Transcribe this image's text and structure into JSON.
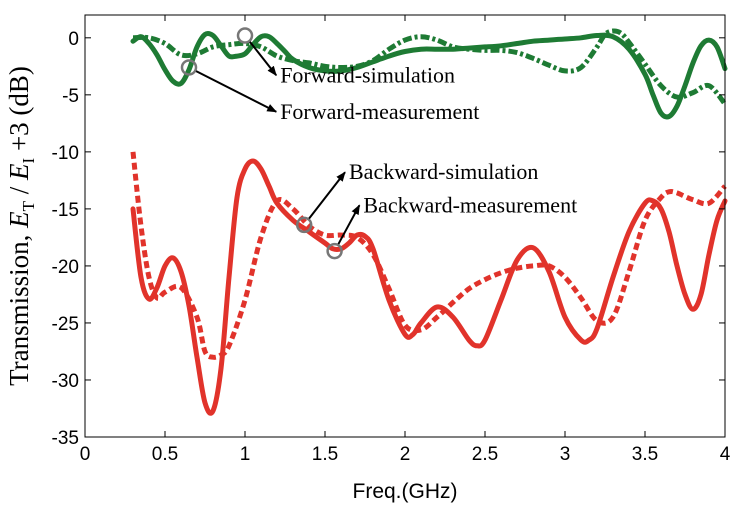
{
  "chart_data": {
    "type": "line",
    "xlabel": "Freq.(GHz)",
    "ylabel": {
      "prefix": "Transmission, ",
      "var1": "E",
      "sub1": "T",
      "mid": " / ",
      "var2": "E",
      "sub2": "I",
      "suffix": " +3 (dB)"
    },
    "xlim": [
      0,
      4
    ],
    "ylim": [
      -35,
      2
    ],
    "xticks": [
      "0",
      "0.5",
      "1",
      "1.5",
      "2",
      "2.5",
      "3",
      "3.5",
      "4"
    ],
    "yticks": [
      "0",
      "-5",
      "-10",
      "-15",
      "-20",
      "-25",
      "-30",
      "-35"
    ],
    "grid": false,
    "series": [
      {
        "name": "Forward-simulation",
        "color": "#1e7b34",
        "style": "solid",
        "x": [
          0.3,
          0.35,
          0.4,
          0.45,
          0.5,
          0.55,
          0.6,
          0.65,
          0.7,
          0.75,
          0.8,
          0.85,
          0.9,
          0.95,
          1.0,
          1.05,
          1.1,
          1.15,
          1.2,
          1.25,
          1.3,
          1.4,
          1.5,
          1.6,
          1.7,
          1.8,
          1.9,
          2.0,
          2.1,
          2.2,
          2.3,
          2.4,
          2.5,
          2.6,
          2.7,
          2.8,
          2.9,
          3.0,
          3.1,
          3.2,
          3.3,
          3.4,
          3.5,
          3.55,
          3.6,
          3.65,
          3.7,
          3.75,
          3.8,
          3.85,
          3.9,
          3.95,
          4.0
        ],
        "y": [
          -0.3,
          0.1,
          -0.5,
          -1.5,
          -2.8,
          -3.8,
          -4.0,
          -2.8,
          -0.8,
          0.3,
          0.2,
          -0.7,
          -1.6,
          -1.6,
          -1.4,
          -0.6,
          0.1,
          0.1,
          -0.5,
          -1.2,
          -1.9,
          -2.6,
          -2.9,
          -2.9,
          -2.6,
          -2.1,
          -1.6,
          -1.2,
          -1.0,
          -1.0,
          -1.0,
          -0.9,
          -0.8,
          -0.7,
          -0.5,
          -0.3,
          -0.2,
          -0.1,
          0.0,
          0.2,
          0.1,
          -1.0,
          -3.2,
          -5.0,
          -6.6,
          -6.9,
          -6.0,
          -4.2,
          -2.2,
          -0.7,
          -0.2,
          -0.8,
          -2.7
        ]
      },
      {
        "name": "Forward-measurement",
        "color": "#1e7b34",
        "style": "dashdot",
        "x": [
          0.3,
          0.4,
          0.5,
          0.6,
          0.7,
          0.8,
          0.9,
          1.0,
          1.1,
          1.2,
          1.3,
          1.4,
          1.5,
          1.6,
          1.7,
          1.8,
          1.9,
          2.0,
          2.1,
          2.2,
          2.3,
          2.4,
          2.5,
          2.6,
          2.7,
          2.8,
          2.9,
          3.0,
          3.1,
          3.2,
          3.25,
          3.3,
          3.35,
          3.4,
          3.5,
          3.6,
          3.7,
          3.8,
          3.9,
          4.0
        ],
        "y": [
          0.0,
          0.0,
          -0.5,
          -1.5,
          -1.4,
          -0.8,
          -0.6,
          -0.5,
          -0.8,
          -1.6,
          -2.0,
          -2.2,
          -2.5,
          -2.6,
          -2.5,
          -2.0,
          -1.0,
          -0.2,
          0.1,
          -0.2,
          -0.8,
          -1.0,
          -1.1,
          -1.1,
          -1.3,
          -1.8,
          -2.4,
          -2.9,
          -2.6,
          -0.8,
          0.3,
          0.6,
          0.4,
          -0.4,
          -2.3,
          -4.2,
          -5.2,
          -4.8,
          -4.2,
          -5.8
        ]
      },
      {
        "name": "Backward-simulation",
        "color": "#e1332b",
        "style": "solid",
        "x": [
          0.3,
          0.35,
          0.4,
          0.45,
          0.5,
          0.55,
          0.6,
          0.65,
          0.7,
          0.75,
          0.8,
          0.85,
          0.9,
          0.95,
          1.0,
          1.05,
          1.1,
          1.15,
          1.2,
          1.3,
          1.4,
          1.5,
          1.55,
          1.6,
          1.65,
          1.7,
          1.75,
          1.8,
          1.9,
          2.0,
          2.05,
          2.1,
          2.2,
          2.3,
          2.4,
          2.45,
          2.5,
          2.6,
          2.7,
          2.8,
          2.9,
          3.0,
          3.1,
          3.15,
          3.2,
          3.3,
          3.4,
          3.5,
          3.55,
          3.6,
          3.65,
          3.7,
          3.75,
          3.8,
          3.85,
          3.9,
          3.95,
          4.0
        ],
        "y": [
          -15.0,
          -21.0,
          -22.9,
          -21.9,
          -20.0,
          -19.3,
          -20.5,
          -23.5,
          -28.0,
          -32.0,
          -32.7,
          -29.0,
          -21.0,
          -14.0,
          -11.5,
          -10.8,
          -11.5,
          -13.0,
          -14.5,
          -16.0,
          -17.0,
          -18.0,
          -18.5,
          -18.5,
          -18.0,
          -17.3,
          -17.4,
          -18.5,
          -23.0,
          -26.0,
          -26.0,
          -25.0,
          -23.6,
          -24.5,
          -26.5,
          -27.0,
          -26.5,
          -23.0,
          -19.5,
          -18.4,
          -20.5,
          -24.5,
          -26.5,
          -26.5,
          -25.5,
          -21.0,
          -17.0,
          -14.5,
          -14.3,
          -15.0,
          -17.0,
          -20.0,
          -22.5,
          -23.8,
          -22.5,
          -19.0,
          -16.0,
          -14.3
        ]
      },
      {
        "name": "Backward-measurement",
        "color": "#e1332b",
        "style": "dotted",
        "x": [
          0.3,
          0.35,
          0.4,
          0.45,
          0.5,
          0.6,
          0.7,
          0.75,
          0.8,
          0.85,
          0.9,
          1.0,
          1.1,
          1.2,
          1.3,
          1.4,
          1.5,
          1.6,
          1.7,
          1.8,
          1.9,
          2.0,
          2.1,
          2.2,
          2.3,
          2.4,
          2.5,
          2.6,
          2.7,
          2.8,
          2.9,
          3.0,
          3.1,
          3.2,
          3.3,
          3.4,
          3.5,
          3.6,
          3.65,
          3.7,
          3.8,
          3.9,
          4.0
        ],
        "y": [
          -10.0,
          -16.5,
          -21.0,
          -22.8,
          -22.3,
          -21.9,
          -24.5,
          -27.5,
          -28.0,
          -27.8,
          -27.0,
          -23.0,
          -17.5,
          -14.3,
          -15.0,
          -16.5,
          -17.3,
          -17.3,
          -17.5,
          -19.0,
          -22.0,
          -25.2,
          -25.6,
          -24.5,
          -23.2,
          -22.0,
          -21.2,
          -20.6,
          -20.2,
          -20.0,
          -20.0,
          -21.0,
          -22.8,
          -24.8,
          -24.5,
          -20.5,
          -16.0,
          -14.0,
          -13.5,
          -13.6,
          -14.2,
          -14.5,
          -13.0
        ]
      }
    ],
    "annotations": [
      {
        "label": "Forward-simulation",
        "at": [
          1.0,
          0.2
        ],
        "text_at": [
          1.22,
          -3.9
        ]
      },
      {
        "label": "Forward-measurement",
        "at": [
          0.65,
          -2.6
        ],
        "text_at": [
          1.22,
          -7.1
        ]
      },
      {
        "label": "Backward-simulation",
        "at": [
          1.37,
          -16.4
        ],
        "text_at": [
          1.65,
          -12.4
        ]
      },
      {
        "label": "Backward-measurement",
        "at": [
          1.56,
          -18.7
        ],
        "text_at": [
          1.74,
          -15.3
        ]
      }
    ]
  }
}
